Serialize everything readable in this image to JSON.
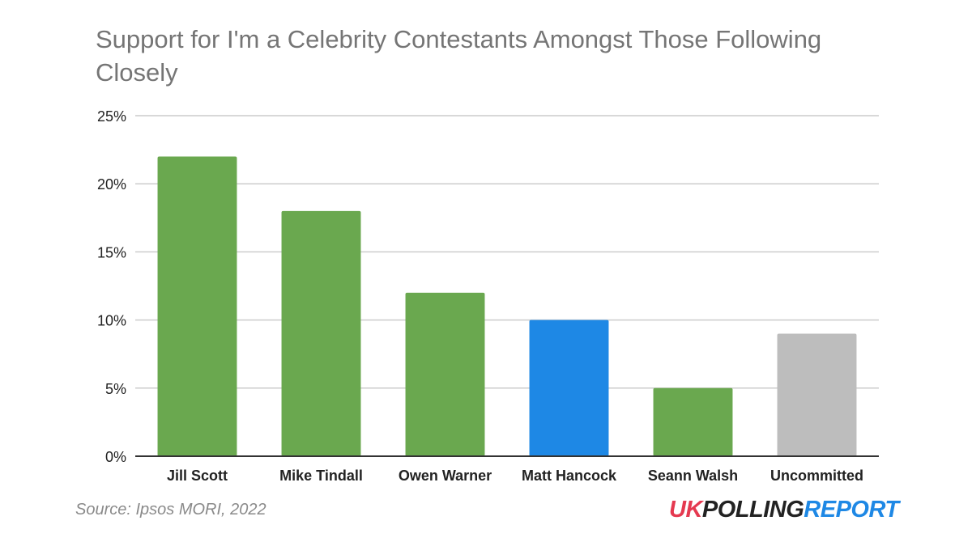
{
  "chart_data": {
    "type": "bar",
    "title": "Support for I'm a Celebrity Contestants Amongst Those Following Closely",
    "categories": [
      "Jill Scott",
      "Mike Tindall",
      "Owen Warner",
      "Matt Hancock",
      "Seann Walsh",
      "Uncommitted"
    ],
    "values": [
      22,
      18,
      12,
      10,
      5,
      9
    ],
    "unit": "%",
    "bar_colors": [
      "#6aa84f",
      "#6aa84f",
      "#6aa84f",
      "#1e88e5",
      "#6aa84f",
      "#bdbdbd"
    ],
    "ylim": [
      0,
      25
    ],
    "yticks": [
      0,
      5,
      10,
      15,
      20,
      25
    ],
    "ytick_labels": [
      "0%",
      "5%",
      "10%",
      "15%",
      "20%",
      "25%"
    ],
    "grid": true,
    "xlabel": "",
    "ylabel": ""
  },
  "source": "Source: Ipsos MORI, 2022",
  "logo": {
    "part1": "UK",
    "part2": "POLLING",
    "part3": "REPORT",
    "colors": [
      "#e53950",
      "#222222",
      "#1e88e5"
    ]
  },
  "colors": {
    "grid": "#cccccc",
    "axis": "#333333",
    "title": "#757575"
  }
}
